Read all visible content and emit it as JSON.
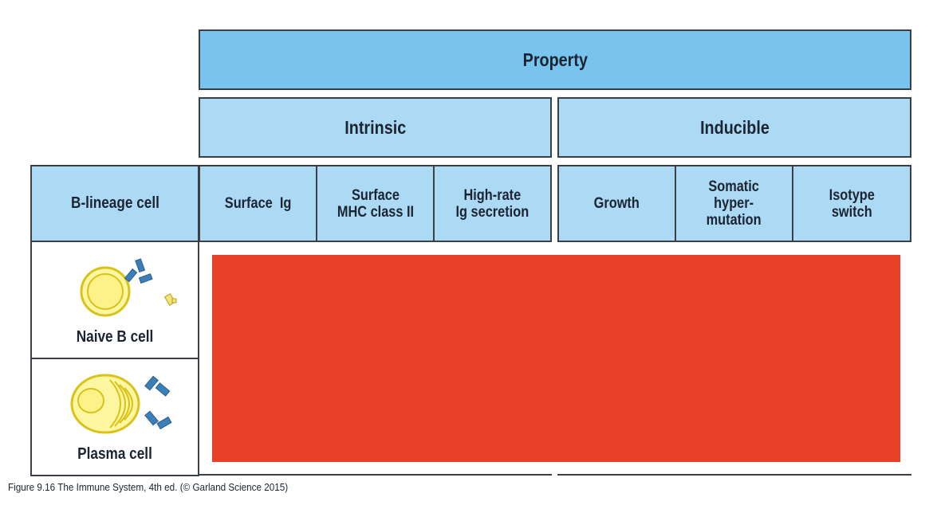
{
  "header": {
    "property": "Property",
    "intrinsic": "Intrinsic",
    "inducible": "Inducible"
  },
  "columns": {
    "row_header": "B-lineage cell",
    "surface_ig": "Surface  Ig",
    "surface_mhc": "Surface\nMHC class II",
    "high_rate": "High-rate\nIg secretion",
    "growth": "Growth",
    "somatic": "Somatic\nhyper-\nmutation",
    "isotype": "Isotype\nswitch"
  },
  "rows": [
    {
      "label": "Naive B cell",
      "icon": "naive-b-cell-icon"
    },
    {
      "label": "Plasma cell",
      "icon": "plasma-cell-icon"
    }
  ],
  "caption": "Figure 9.16 The Immune System, 4th ed. (© Garland Science 2015)",
  "colors": {
    "header_dark": "#79c4ee",
    "header_light": "#acdaf5",
    "redaction": "#e84026",
    "cell_fill": "#fef6a0",
    "cell_outline": "#d9c21a",
    "antibody": "#3b7fb8"
  }
}
